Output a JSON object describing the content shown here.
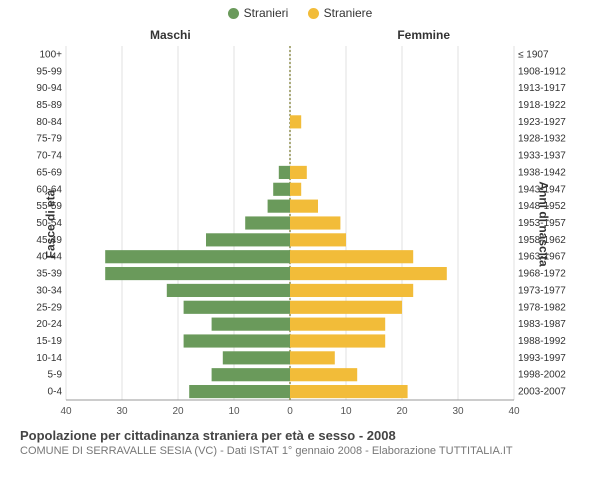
{
  "legend": {
    "male": "Stranieri",
    "female": "Straniere",
    "male_color": "#6a9a5b",
    "female_color": "#f2bc39"
  },
  "headers": {
    "male": "Maschi",
    "female": "Femmine"
  },
  "axis": {
    "left_label": "Fasce di età",
    "right_label": "Anni di nascita",
    "x_ticks": [
      40,
      30,
      20,
      10,
      0,
      10,
      20,
      30,
      40
    ],
    "x_max": 40,
    "tick_fontsize": 10,
    "label_fontsize": 12
  },
  "chart": {
    "type": "population-pyramid",
    "background_color": "#ffffff",
    "grid_color": "#cccccc",
    "center_line_color": "#888844",
    "bar_male_color": "#6a9a5b",
    "bar_female_color": "#f2bc39",
    "row_font_size": 10,
    "rows": [
      {
        "age": "100+",
        "male": 0,
        "female": 0,
        "birth": "≤ 1907"
      },
      {
        "age": "95-99",
        "male": 0,
        "female": 0,
        "birth": "1908-1912"
      },
      {
        "age": "90-94",
        "male": 0,
        "female": 0,
        "birth": "1913-1917"
      },
      {
        "age": "85-89",
        "male": 0,
        "female": 0,
        "birth": "1918-1922"
      },
      {
        "age": "80-84",
        "male": 0,
        "female": 2,
        "birth": "1923-1927"
      },
      {
        "age": "75-79",
        "male": 0,
        "female": 0,
        "birth": "1928-1932"
      },
      {
        "age": "70-74",
        "male": 0,
        "female": 0,
        "birth": "1933-1937"
      },
      {
        "age": "65-69",
        "male": 2,
        "female": 3,
        "birth": "1938-1942"
      },
      {
        "age": "60-64",
        "male": 3,
        "female": 2,
        "birth": "1943-1947"
      },
      {
        "age": "55-59",
        "male": 4,
        "female": 5,
        "birth": "1948-1952"
      },
      {
        "age": "50-54",
        "male": 8,
        "female": 9,
        "birth": "1953-1957"
      },
      {
        "age": "45-49",
        "male": 15,
        "female": 10,
        "birth": "1958-1962"
      },
      {
        "age": "40-44",
        "male": 33,
        "female": 22,
        "birth": "1963-1967"
      },
      {
        "age": "35-39",
        "male": 33,
        "female": 28,
        "birth": "1968-1972"
      },
      {
        "age": "30-34",
        "male": 22,
        "female": 22,
        "birth": "1973-1977"
      },
      {
        "age": "25-29",
        "male": 19,
        "female": 20,
        "birth": "1978-1982"
      },
      {
        "age": "20-24",
        "male": 14,
        "female": 17,
        "birth": "1983-1987"
      },
      {
        "age": "15-19",
        "male": 19,
        "female": 17,
        "birth": "1988-1992"
      },
      {
        "age": "10-14",
        "male": 12,
        "female": 8,
        "birth": "1993-1997"
      },
      {
        "age": "5-9",
        "male": 14,
        "female": 12,
        "birth": "1998-2002"
      },
      {
        "age": "0-4",
        "male": 18,
        "female": 21,
        "birth": "2003-2007"
      }
    ]
  },
  "footer": {
    "title": "Popolazione per cittadinanza straniera per età e sesso - 2008",
    "subtitle": "COMUNE DI SERRAVALLE SESIA (VC) - Dati ISTAT 1° gennaio 2008 - Elaborazione TUTTITALIA.IT"
  }
}
